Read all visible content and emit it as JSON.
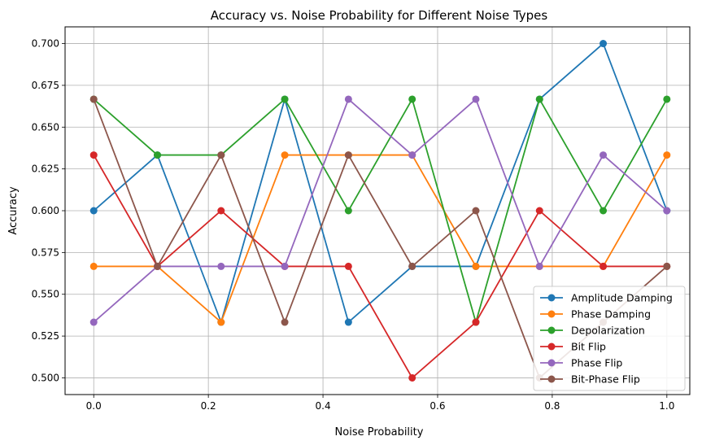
{
  "chart_data": {
    "type": "line",
    "title": "Accuracy vs. Noise Probability for Different Noise Types",
    "xlabel": "Noise Probability",
    "ylabel": "Accuracy",
    "xlim": [
      -0.05,
      1.04
    ],
    "ylim": [
      0.49,
      0.71
    ],
    "xticks": [
      0.0,
      0.2,
      0.4,
      0.6,
      0.8,
      1.0
    ],
    "xtick_labels": [
      "0.0",
      "0.2",
      "0.4",
      "0.6",
      "0.8",
      "1.0"
    ],
    "yticks": [
      0.5,
      0.525,
      0.55,
      0.575,
      0.6,
      0.625,
      0.65,
      0.675,
      0.7
    ],
    "ytick_labels": [
      "0.500",
      "0.525",
      "0.550",
      "0.575",
      "0.600",
      "0.625",
      "0.650",
      "0.675",
      "0.700"
    ],
    "grid": true,
    "legend_position": "lower-right",
    "x": [
      0.0,
      0.1111,
      0.2222,
      0.3333,
      0.4444,
      0.5556,
      0.6667,
      0.7778,
      0.8889,
      1.0
    ],
    "series": [
      {
        "name": "Amplitude Damping",
        "color": "#1f77b4",
        "values": [
          0.6,
          0.6333,
          0.5333,
          0.6667,
          0.5333,
          0.5667,
          0.5667,
          0.6667,
          0.7,
          0.6
        ]
      },
      {
        "name": "Phase Damping",
        "color": "#ff7f0e",
        "values": [
          0.5667,
          0.5667,
          0.5333,
          0.6333,
          0.6333,
          0.6333,
          0.5667,
          0.5667,
          0.5667,
          0.6333
        ]
      },
      {
        "name": "Depolarization",
        "color": "#2ca02c",
        "values": [
          0.6667,
          0.6333,
          0.6333,
          0.6667,
          0.6,
          0.6667,
          0.5333,
          0.6667,
          0.6,
          0.6667
        ]
      },
      {
        "name": "Bit Flip",
        "color": "#d62728",
        "values": [
          0.6333,
          0.5667,
          0.6,
          0.5667,
          0.5667,
          0.5,
          0.5333,
          0.6,
          0.5667,
          0.5667
        ]
      },
      {
        "name": "Phase Flip",
        "color": "#9467bd",
        "values": [
          0.5333,
          0.5667,
          0.5667,
          0.5667,
          0.6667,
          0.6333,
          0.6667,
          0.5667,
          0.6333,
          0.6
        ]
      },
      {
        "name": "Bit-Phase Flip",
        "color": "#8c564b",
        "values": [
          0.6667,
          0.5667,
          0.6333,
          0.5333,
          0.6333,
          0.5667,
          0.6,
          0.5,
          0.5333,
          0.5667
        ]
      }
    ]
  }
}
